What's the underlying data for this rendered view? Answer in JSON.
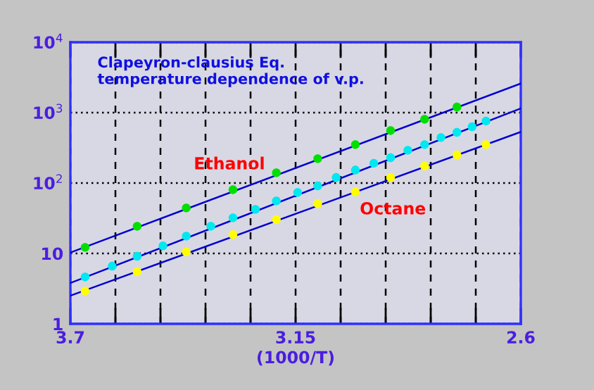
{
  "chart_data": {
    "type": "scatter",
    "title": "Clapeyron-clausius Eq.\ntemperature dependence of v.p.",
    "xlabel": "(1000/T)",
    "series": [
      {
        "marker": "circle",
        "color": "#00e000",
        "x": [
          3.664,
          3.537,
          3.417,
          3.303,
          3.197,
          3.096,
          3.004,
          2.918,
          2.835,
          2.756
        ],
        "values": [
          12.2,
          24.3,
          44.3,
          80.5,
          140,
          222,
          352,
          557,
          805,
          1202
        ]
      },
      {
        "marker": "circle",
        "color": "#00e8f0",
        "x": [
          3.664,
          3.598,
          3.537,
          3.474,
          3.417,
          3.357,
          3.303,
          3.248,
          3.197,
          3.145,
          3.096,
          3.051,
          3.004,
          2.959,
          2.918,
          2.876,
          2.835,
          2.795,
          2.756,
          2.719,
          2.685
        ],
        "values": [
          4.63,
          6.6,
          9.12,
          12.8,
          17.6,
          24.3,
          32.1,
          42.3,
          55.7,
          73.5,
          91.2,
          120,
          153,
          191,
          229,
          292,
          352,
          443,
          525,
          631,
          759
        ]
      },
      {
        "marker": "circle",
        "color": "#ffff00",
        "x": [
          3.664,
          3.537,
          3.417,
          3.303,
          3.197,
          3.096,
          3.004,
          2.918,
          2.835,
          2.756,
          2.685
        ],
        "values": [
          2.92,
          5.5,
          10.5,
          18.5,
          30.2,
          50.8,
          74.8,
          120,
          174,
          251,
          352
        ]
      },
      {
        "type": "line",
        "marker": "none",
        "color": "#0000d0",
        "x": [
          3.7,
          2.6
        ],
        "values": [
          10.3,
          2590
        ]
      },
      {
        "type": "line",
        "marker": "none",
        "color": "#0000d0",
        "x": [
          3.7,
          2.6
        ],
        "values": [
          3.8,
          1148
        ]
      },
      {
        "type": "line",
        "marker": "none",
        "color": "#0000d0",
        "x": [
          3.7,
          2.6
        ],
        "values": [
          2.51,
          532
        ]
      }
    ],
    "annotations": [
      "Ethanol",
      "Octane"
    ],
    "xlim": [
      3.7,
      2.6
    ],
    "ylim": [
      1,
      10000
    ],
    "log": "y",
    "xticks": [
      3.7,
      {
        "value": 3.59,
        "label": null
      },
      {
        "value": 3.48,
        "label": null
      },
      {
        "value": 3.37,
        "label": null
      },
      {
        "value": 3.26,
        "label": null
      },
      3.15,
      {
        "value": 3.04,
        "label": null
      },
      {
        "value": 2.93,
        "label": null
      },
      {
        "value": 2.82,
        "label": null
      },
      {
        "value": 2.71,
        "label": null
      },
      2.6
    ],
    "yticks": [
      1,
      10,
      {
        "value": 100,
        "label": "10$^{2}$"
      },
      {
        "value": 1000,
        "label": "10$^{3}$"
      },
      {
        "value": 10000,
        "label": "10$^{4}$"
      }
    ],
    "grid": true
  }
}
